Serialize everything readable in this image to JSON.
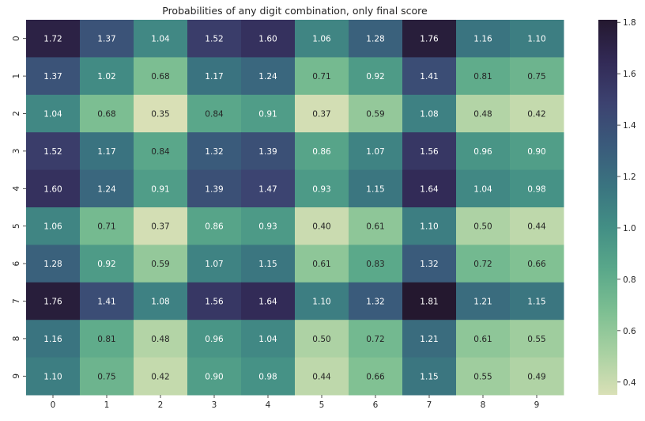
{
  "chart_data": {
    "type": "heatmap",
    "title": "Probabilities of any digit combination, only final score",
    "x_categories": [
      "0",
      "1",
      "2",
      "3",
      "4",
      "5",
      "6",
      "7",
      "8",
      "9"
    ],
    "y_categories": [
      "0",
      "1",
      "2",
      "3",
      "4",
      "5",
      "6",
      "7",
      "8",
      "9"
    ],
    "values": [
      [
        1.72,
        1.37,
        1.04,
        1.52,
        1.6,
        1.06,
        1.28,
        1.76,
        1.16,
        1.1
      ],
      [
        1.37,
        1.02,
        0.68,
        1.17,
        1.24,
        0.71,
        0.92,
        1.41,
        0.81,
        0.75
      ],
      [
        1.04,
        0.68,
        0.35,
        0.84,
        0.91,
        0.37,
        0.59,
        1.08,
        0.48,
        0.42
      ],
      [
        1.52,
        1.17,
        0.84,
        1.32,
        1.39,
        0.86,
        1.07,
        1.56,
        0.96,
        0.9
      ],
      [
        1.6,
        1.24,
        0.91,
        1.39,
        1.47,
        0.93,
        1.15,
        1.64,
        1.04,
        0.98
      ],
      [
        1.06,
        0.71,
        0.37,
        0.86,
        0.93,
        0.4,
        0.61,
        1.1,
        0.5,
        0.44
      ],
      [
        1.28,
        0.92,
        0.59,
        1.07,
        1.15,
        0.61,
        0.83,
        1.32,
        0.72,
        0.66
      ],
      [
        1.76,
        1.41,
        1.08,
        1.56,
        1.64,
        1.1,
        1.32,
        1.81,
        1.21,
        1.15
      ],
      [
        1.16,
        0.81,
        0.48,
        0.96,
        1.04,
        0.5,
        0.72,
        1.21,
        0.61,
        0.55
      ],
      [
        1.1,
        0.75,
        0.42,
        0.9,
        0.98,
        0.44,
        0.66,
        1.15,
        0.55,
        0.49
      ]
    ],
    "value_format": "2 decimals",
    "colorbar": {
      "min": 0.35,
      "max": 1.81,
      "ticks": [
        "0.4",
        "0.6",
        "0.8",
        "1.0",
        "1.2",
        "1.4",
        "1.6",
        "1.8"
      ],
      "colormap": [
        "#d9e0b6",
        "#a9d1a2",
        "#7dbf92",
        "#5aa88a",
        "#438f85",
        "#3a7480",
        "#3a5a7b",
        "#3c4270",
        "#322a56",
        "#24182f"
      ]
    },
    "annotation_text_colors": {
      "light": "#ffffff",
      "dark": "#262626"
    },
    "grid": false,
    "legend": "colorbar right"
  }
}
